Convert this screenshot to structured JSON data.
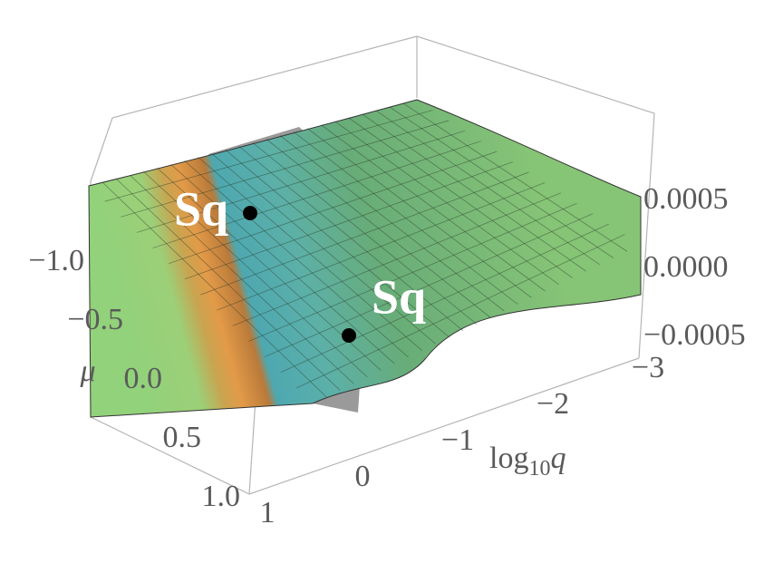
{
  "chart_data": {
    "type": "surface3d",
    "annotations": [
      "Sq",
      "Sq"
    ],
    "x_label": {
      "base": "log",
      "sub": "10",
      "var": "q"
    },
    "y_label": "μ",
    "xlim": [
      1,
      -3
    ],
    "xticks": [
      1,
      0,
      {
        "value": -1,
        "label": "−1"
      },
      {
        "value": -2,
        "label": "−2"
      },
      {
        "value": -3,
        "label": "−3"
      }
    ],
    "ylim": [
      -1,
      1
    ],
    "yticks": [
      {
        "value": -1,
        "label": "−1.0"
      },
      {
        "value": -0.5,
        "label": "−0.5"
      },
      {
        "value": 0,
        "label": "0.0"
      },
      {
        "value": 0.5,
        "label": "0.5"
      },
      {
        "value": 1,
        "label": "1.0"
      }
    ],
    "zlim": [
      -0.0006,
      0.0012
    ],
    "zticks": [
      {
        "value": -0.0005,
        "label": "−0.0005"
      },
      {
        "value": 0,
        "label": "0.0000"
      },
      {
        "value": 0.0005,
        "label": "0.0005"
      }
    ]
  }
}
